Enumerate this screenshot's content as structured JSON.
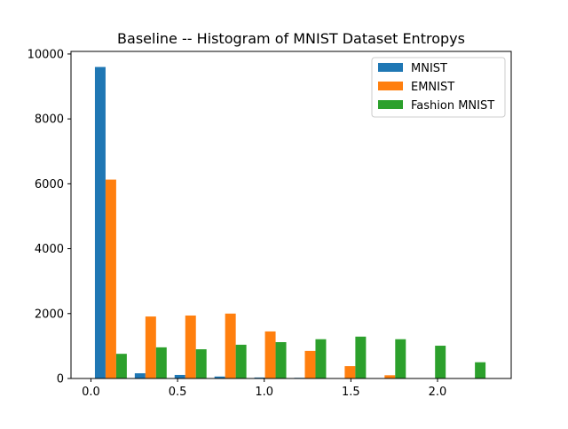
{
  "chart_data": {
    "type": "bar",
    "title": "Baseline -- Histogram of MNIST Dataset Entropys",
    "xlabel": "",
    "ylabel": "",
    "xlim": [
      -0.115,
      2.425
    ],
    "ylim": [
      0,
      10080
    ],
    "x_ticks": [
      0.0,
      0.5,
      1.0,
      1.5,
      2.0
    ],
    "x_tick_labels": [
      "0.0",
      "0.5",
      "1.0",
      "1.5",
      "2.0"
    ],
    "y_ticks": [
      0,
      2000,
      4000,
      6000,
      8000,
      10000
    ],
    "y_tick_labels": [
      "0",
      "2000",
      "4000",
      "6000",
      "8000",
      "10000"
    ],
    "grid": false,
    "legend_position": "top-right",
    "bin_edges": [
      0.0,
      0.23,
      0.46,
      0.69,
      0.92,
      1.15,
      1.38,
      1.61,
      1.84,
      2.07,
      2.3
    ],
    "series": [
      {
        "name": "MNIST",
        "color": "#1f77b4",
        "values": [
          9600,
          160,
          110,
          60,
          30,
          20,
          0,
          0,
          0,
          0
        ]
      },
      {
        "name": "EMNIST",
        "color": "#ff7f0e",
        "values": [
          6130,
          1910,
          1940,
          2000,
          1450,
          850,
          380,
          100,
          0,
          0
        ]
      },
      {
        "name": "Fashion MNIST",
        "color": "#2ca02c",
        "values": [
          760,
          960,
          900,
          1040,
          1120,
          1210,
          1290,
          1210,
          1010,
          500
        ]
      }
    ]
  }
}
